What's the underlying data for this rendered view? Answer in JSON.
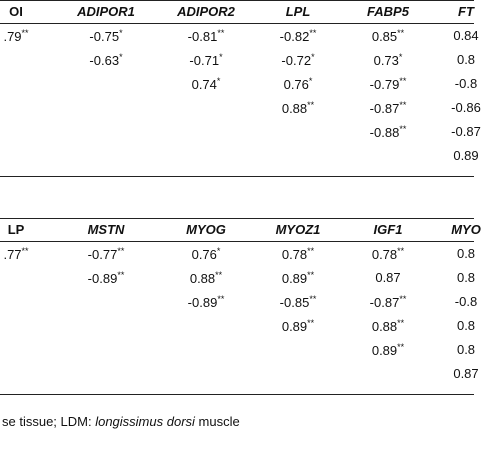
{
  "tables": [
    {
      "header": [
        "OI",
        "ADIPOR1",
        "ADIPOR2",
        "LPL",
        "FABP5",
        "FT"
      ],
      "rows": [
        [
          [
            ".79",
            "**"
          ],
          [
            "-0.75",
            "*"
          ],
          [
            "-0.81",
            "**"
          ],
          [
            "-0.82",
            "**"
          ],
          [
            "0.85",
            "**"
          ],
          [
            "0.84"
          ]
        ],
        [
          null,
          [
            "-0.63",
            "*"
          ],
          [
            "-0.71",
            "*"
          ],
          [
            "-0.72",
            "*"
          ],
          [
            "0.73",
            "*"
          ],
          [
            "0.8"
          ]
        ],
        [
          null,
          null,
          [
            "0.74",
            "*"
          ],
          [
            "0.76",
            "*"
          ],
          [
            "-0.79",
            "**"
          ],
          [
            "-0.8"
          ]
        ],
        [
          null,
          null,
          null,
          [
            "0.88",
            "**"
          ],
          [
            "-0.87",
            "**"
          ],
          [
            "-0.86"
          ]
        ],
        [
          null,
          null,
          null,
          null,
          [
            "-0.88",
            "**"
          ],
          [
            "-0.87"
          ]
        ],
        [
          null,
          null,
          null,
          null,
          null,
          [
            "0.89"
          ]
        ]
      ]
    },
    {
      "header": [
        "LP",
        "MSTN",
        "MYOG",
        "MYOZ1",
        "IGF1",
        "MYO"
      ],
      "rows": [
        [
          [
            ".77",
            "**"
          ],
          [
            "-0.77",
            "**"
          ],
          [
            "0.76",
            "*"
          ],
          [
            "0.78",
            "**"
          ],
          [
            "0.78",
            "**"
          ],
          [
            "0.8"
          ]
        ],
        [
          null,
          [
            "-0.89",
            "**"
          ],
          [
            "0.88",
            "**"
          ],
          [
            "0.89",
            "**"
          ],
          [
            "0.87"
          ],
          [
            "0.8"
          ]
        ],
        [
          null,
          null,
          [
            "-0.89",
            "**"
          ],
          [
            "-0.85",
            "**"
          ],
          [
            "-0.87",
            "**"
          ],
          [
            "-0.8"
          ]
        ],
        [
          null,
          null,
          null,
          [
            "0.89",
            "**"
          ],
          [
            "0.88",
            "**"
          ],
          [
            "0.8"
          ]
        ],
        [
          null,
          null,
          null,
          null,
          [
            "0.89",
            "**"
          ],
          [
            "0.8"
          ]
        ],
        [
          null,
          null,
          null,
          null,
          null,
          [
            "0.87"
          ]
        ]
      ]
    }
  ],
  "footnote": [
    "se tissue; LDM: ",
    "longissimus dorsi",
    " muscle"
  ]
}
